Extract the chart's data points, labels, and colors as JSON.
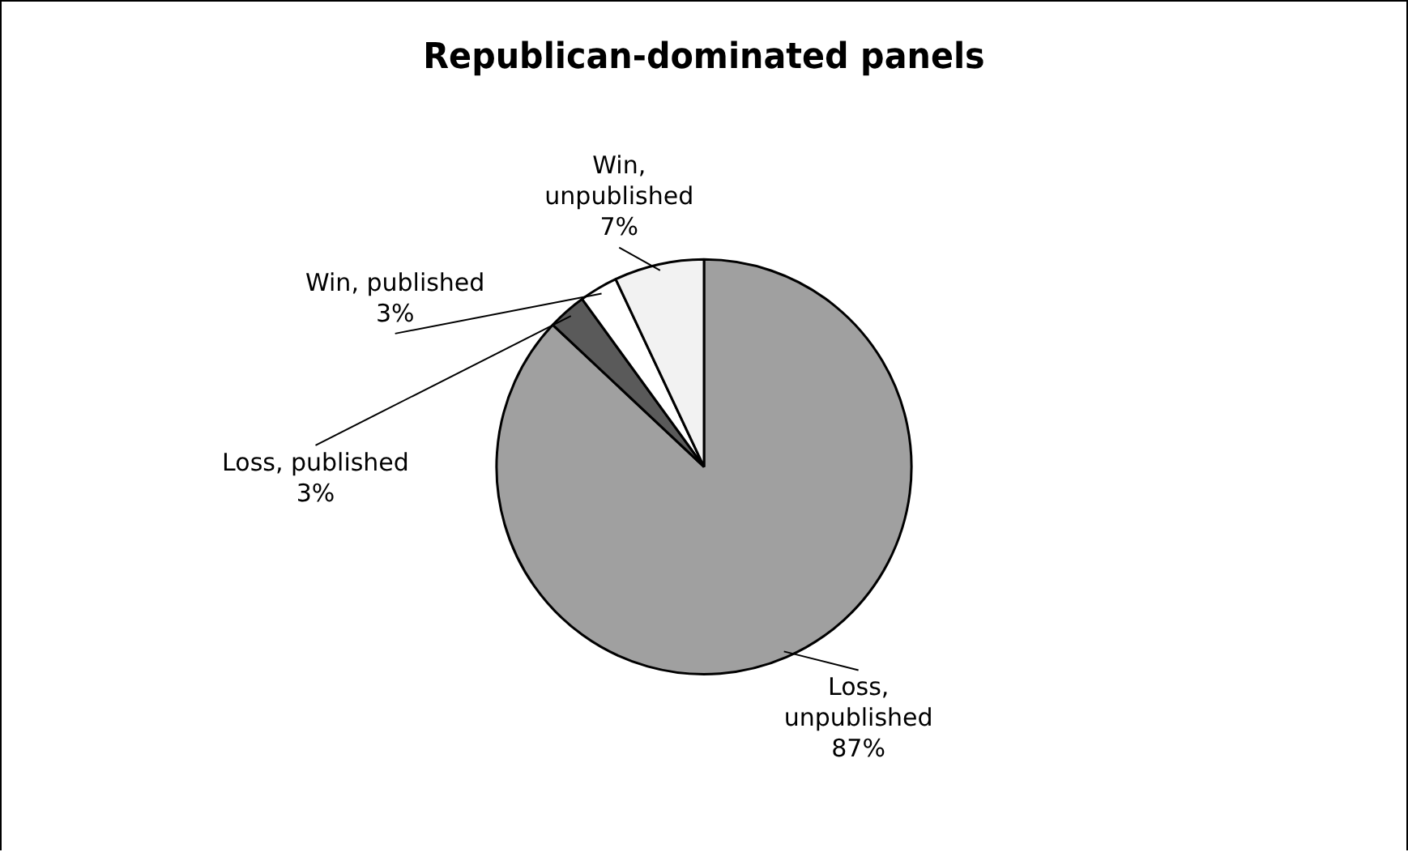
{
  "chart_data": {
    "type": "pie",
    "title": "Republican-dominated panels",
    "categories": [
      "Loss,\nunpublished",
      "Loss, published\n",
      "Win, published\n",
      "Win,\nunpublished"
    ],
    "values": [
      87,
      3,
      3,
      7
    ],
    "colors": [
      "#a0a0a0",
      "#5a5a5a",
      "#ffffff",
      "#f2f2f2"
    ],
    "value_labels": [
      "87%",
      "3%",
      "3%",
      "7%"
    ],
    "legend": false
  }
}
